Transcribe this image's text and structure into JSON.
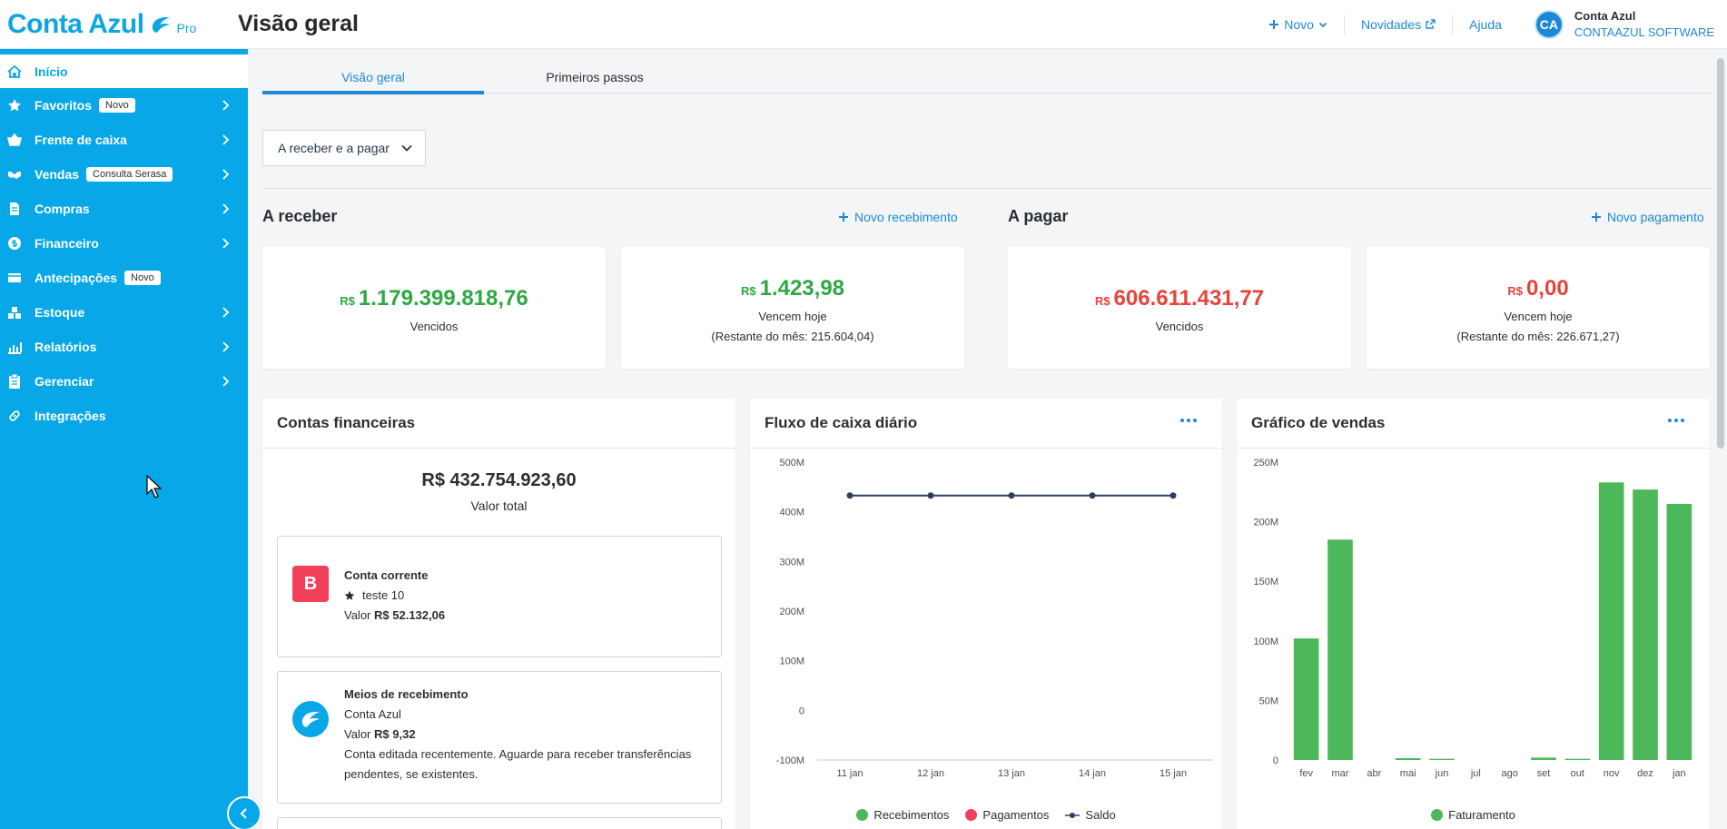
{
  "header": {
    "brand_name": "Conta Azul",
    "brand_tier": "Pro",
    "page_title": "Visão geral",
    "new_label": "Novo",
    "news_label": "Novidades",
    "help_label": "Ajuda",
    "user": {
      "initials": "CA",
      "name": "Conta Azul",
      "company": "CONTAAZUL SOFTWARE"
    }
  },
  "sidebar": {
    "items": [
      {
        "label": "Início",
        "icon": "home-icon",
        "active": true
      },
      {
        "label": "Favoritos",
        "icon": "star-icon",
        "badge": "Novo",
        "chevron": true
      },
      {
        "label": "Frente de caixa",
        "icon": "basket-icon",
        "chevron": true
      },
      {
        "label": "Vendas",
        "icon": "handshake-icon",
        "badge": "Consulta Serasa",
        "chevron": true
      },
      {
        "label": "Compras",
        "icon": "document-icon",
        "chevron": true
      },
      {
        "label": "Financeiro",
        "icon": "dollar-icon",
        "chevron": true
      },
      {
        "label": "Antecipações",
        "icon": "card-icon",
        "badge": "Novo"
      },
      {
        "label": "Estoque",
        "icon": "boxes-icon",
        "chevron": true
      },
      {
        "label": "Relatórios",
        "icon": "chart-icon",
        "chevron": true
      },
      {
        "label": "Gerenciar",
        "icon": "clipboard-icon",
        "chevron": true
      },
      {
        "label": "Integrações",
        "icon": "link-icon"
      }
    ]
  },
  "tabs": [
    "Visão geral",
    "Primeiros passos"
  ],
  "filter": {
    "label": "A receber e a pagar"
  },
  "receivable": {
    "title": "A receber",
    "action": "Novo recebimento",
    "overdue": {
      "currency": "R$",
      "value": "1.179.399.818,76",
      "label": "Vencidos"
    },
    "today": {
      "currency": "R$",
      "value": "1.423,98",
      "label": "Vencem hoje",
      "remaining": "(Restante do mês: 215.604,04)"
    }
  },
  "payable": {
    "title": "A pagar",
    "action": "Novo pagamento",
    "overdue": {
      "currency": "R$",
      "value": "606.611.431,77",
      "label": "Vencidos"
    },
    "today": {
      "currency": "R$",
      "value": "0,00",
      "label": "Vencem hoje",
      "remaining": "(Restante do mês: 226.671,27)"
    }
  },
  "accounts": {
    "title": "Contas financeiras",
    "total_value": "R$ 432.754.923,60",
    "total_label": "Valor total",
    "items": [
      {
        "icon_letter": "B",
        "name": "Conta corrente",
        "subtitle": "teste 10",
        "value_label": "Valor",
        "value": "R$ 52.132,06"
      },
      {
        "name": "Meios de recebimento",
        "subtitle": "Conta Azul",
        "value_label": "Valor",
        "value": "R$ 9,32",
        "note": "Conta editada recentemente. Aguarde para receber transferências pendentes, se existentes."
      }
    ]
  },
  "cashflow": {
    "title": "Fluxo de caixa diário",
    "legend": [
      "Recebimentos",
      "Pagamentos",
      "Saldo"
    ],
    "chart_data": {
      "type": "line",
      "title": "Fluxo de caixa diário",
      "x": [
        "11 jan",
        "12 jan",
        "13 jan",
        "14 jan",
        "15 jan"
      ],
      "y_ticks": [
        "500M",
        "400M",
        "300M",
        "200M",
        "100M",
        "0",
        "-100M"
      ],
      "ylim": [
        -100,
        500
      ],
      "series": [
        {
          "name": "Recebimentos",
          "color": "#4cb85a",
          "values": [
            0,
            0,
            0,
            0,
            0
          ]
        },
        {
          "name": "Pagamentos",
          "color": "#f0405a",
          "values": [
            0,
            0,
            0,
            0,
            0
          ]
        },
        {
          "name": "Saldo",
          "color": "#2c3e60",
          "values": [
            432.75,
            432.75,
            432.75,
            432.75,
            432.75
          ]
        }
      ]
    }
  },
  "sales": {
    "title": "Gráfico de vendas",
    "legend": [
      "Faturamento"
    ],
    "chart_data": {
      "type": "bar",
      "title": "Gráfico de vendas",
      "categories": [
        "fev",
        "mar",
        "abr",
        "mai",
        "jun",
        "jul",
        "ago",
        "set",
        "out",
        "nov",
        "dez",
        "jan"
      ],
      "y_ticks": [
        "250M",
        "200M",
        "150M",
        "100M",
        "50M",
        "0"
      ],
      "ylim": [
        0,
        250
      ],
      "series": [
        {
          "name": "Faturamento",
          "color": "#4cb85a",
          "values": [
            102,
            185,
            0,
            1.5,
            1,
            0,
            0,
            2,
            1,
            233,
            227,
            215
          ]
        }
      ]
    }
  },
  "colors": {
    "accent": "#07a7e8",
    "link": "#1e88d6",
    "positive": "#2ea842",
    "negative": "#e8433a"
  }
}
